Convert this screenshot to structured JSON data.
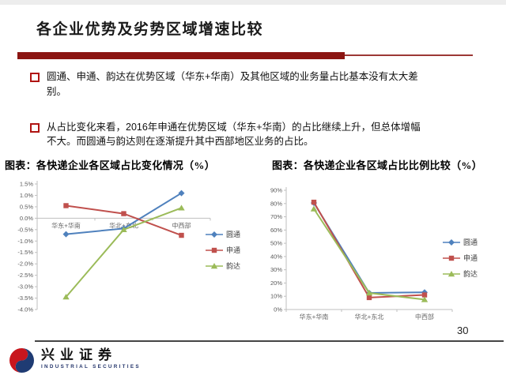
{
  "page": {
    "number": "30",
    "background": "#ffffff"
  },
  "header": {
    "title": "各企业优势及劣势区域增速比较",
    "accent_color": "#8B1512"
  },
  "bullets": [
    "圆通、申通、韵达在优势区域（华东+华南）及其他区域的业务量占比基本没有太大差别。",
    "从占比变化来看，2016年申通在优势区域（华东+华南）的占比继续上升，但总体增幅不大。而圆通与韵达则在逐渐提升其中西部地区业务的占比。"
  ],
  "footer": {
    "logo_cn": "兴业证券",
    "logo_en": "INDUSTRIAL SECURITIES"
  },
  "chart_data": [
    {
      "type": "line",
      "title": "图表：各快递企业各区域占比变化情况（%）",
      "categories": [
        "华东+华南",
        "华北+东北",
        "中西部"
      ],
      "series": [
        {
          "name": "圆通",
          "color": "#4F81BD",
          "marker": "diamond",
          "values": [
            -0.7,
            -0.45,
            1.1
          ]
        },
        {
          "name": "申通",
          "color": "#C0504D",
          "marker": "square",
          "values": [
            0.55,
            0.2,
            -0.75
          ]
        },
        {
          "name": "韵达",
          "color": "#9BBB59",
          "marker": "triangle",
          "values": [
            -3.45,
            -0.5,
            0.45
          ]
        }
      ],
      "ylim": [
        -4.0,
        1.5
      ],
      "yticks": [
        "1.5%",
        "1.0%",
        "0.5%",
        "0.0%",
        "-0.5%",
        "-1.0%",
        "-1.5%",
        "-2.0%",
        "-2.5%",
        "-3.0%",
        "-3.5%",
        "-4.0%"
      ],
      "xlabel": "",
      "ylabel": "",
      "legend_position": "right",
      "grid": false
    },
    {
      "type": "line",
      "title": "图表：各快递企业各区域占比比例比较（%）",
      "categories": [
        "华东+华南",
        "华北+东北",
        "中西部"
      ],
      "series": [
        {
          "name": "圆通",
          "color": "#4F81BD",
          "marker": "diamond",
          "values": [
            80.5,
            12.5,
            13
          ]
        },
        {
          "name": "申通",
          "color": "#C0504D",
          "marker": "square",
          "values": [
            81,
            9,
            11
          ]
        },
        {
          "name": "韵达",
          "color": "#9BBB59",
          "marker": "triangle",
          "values": [
            76,
            12.5,
            7.5
          ]
        }
      ],
      "ylim": [
        0,
        90
      ],
      "yticks": [
        "90%",
        "80%",
        "70%",
        "60%",
        "50%",
        "40%",
        "30%",
        "20%",
        "10%",
        "0%"
      ],
      "xlabel": "",
      "ylabel": "",
      "legend_position": "right",
      "grid": false
    }
  ]
}
